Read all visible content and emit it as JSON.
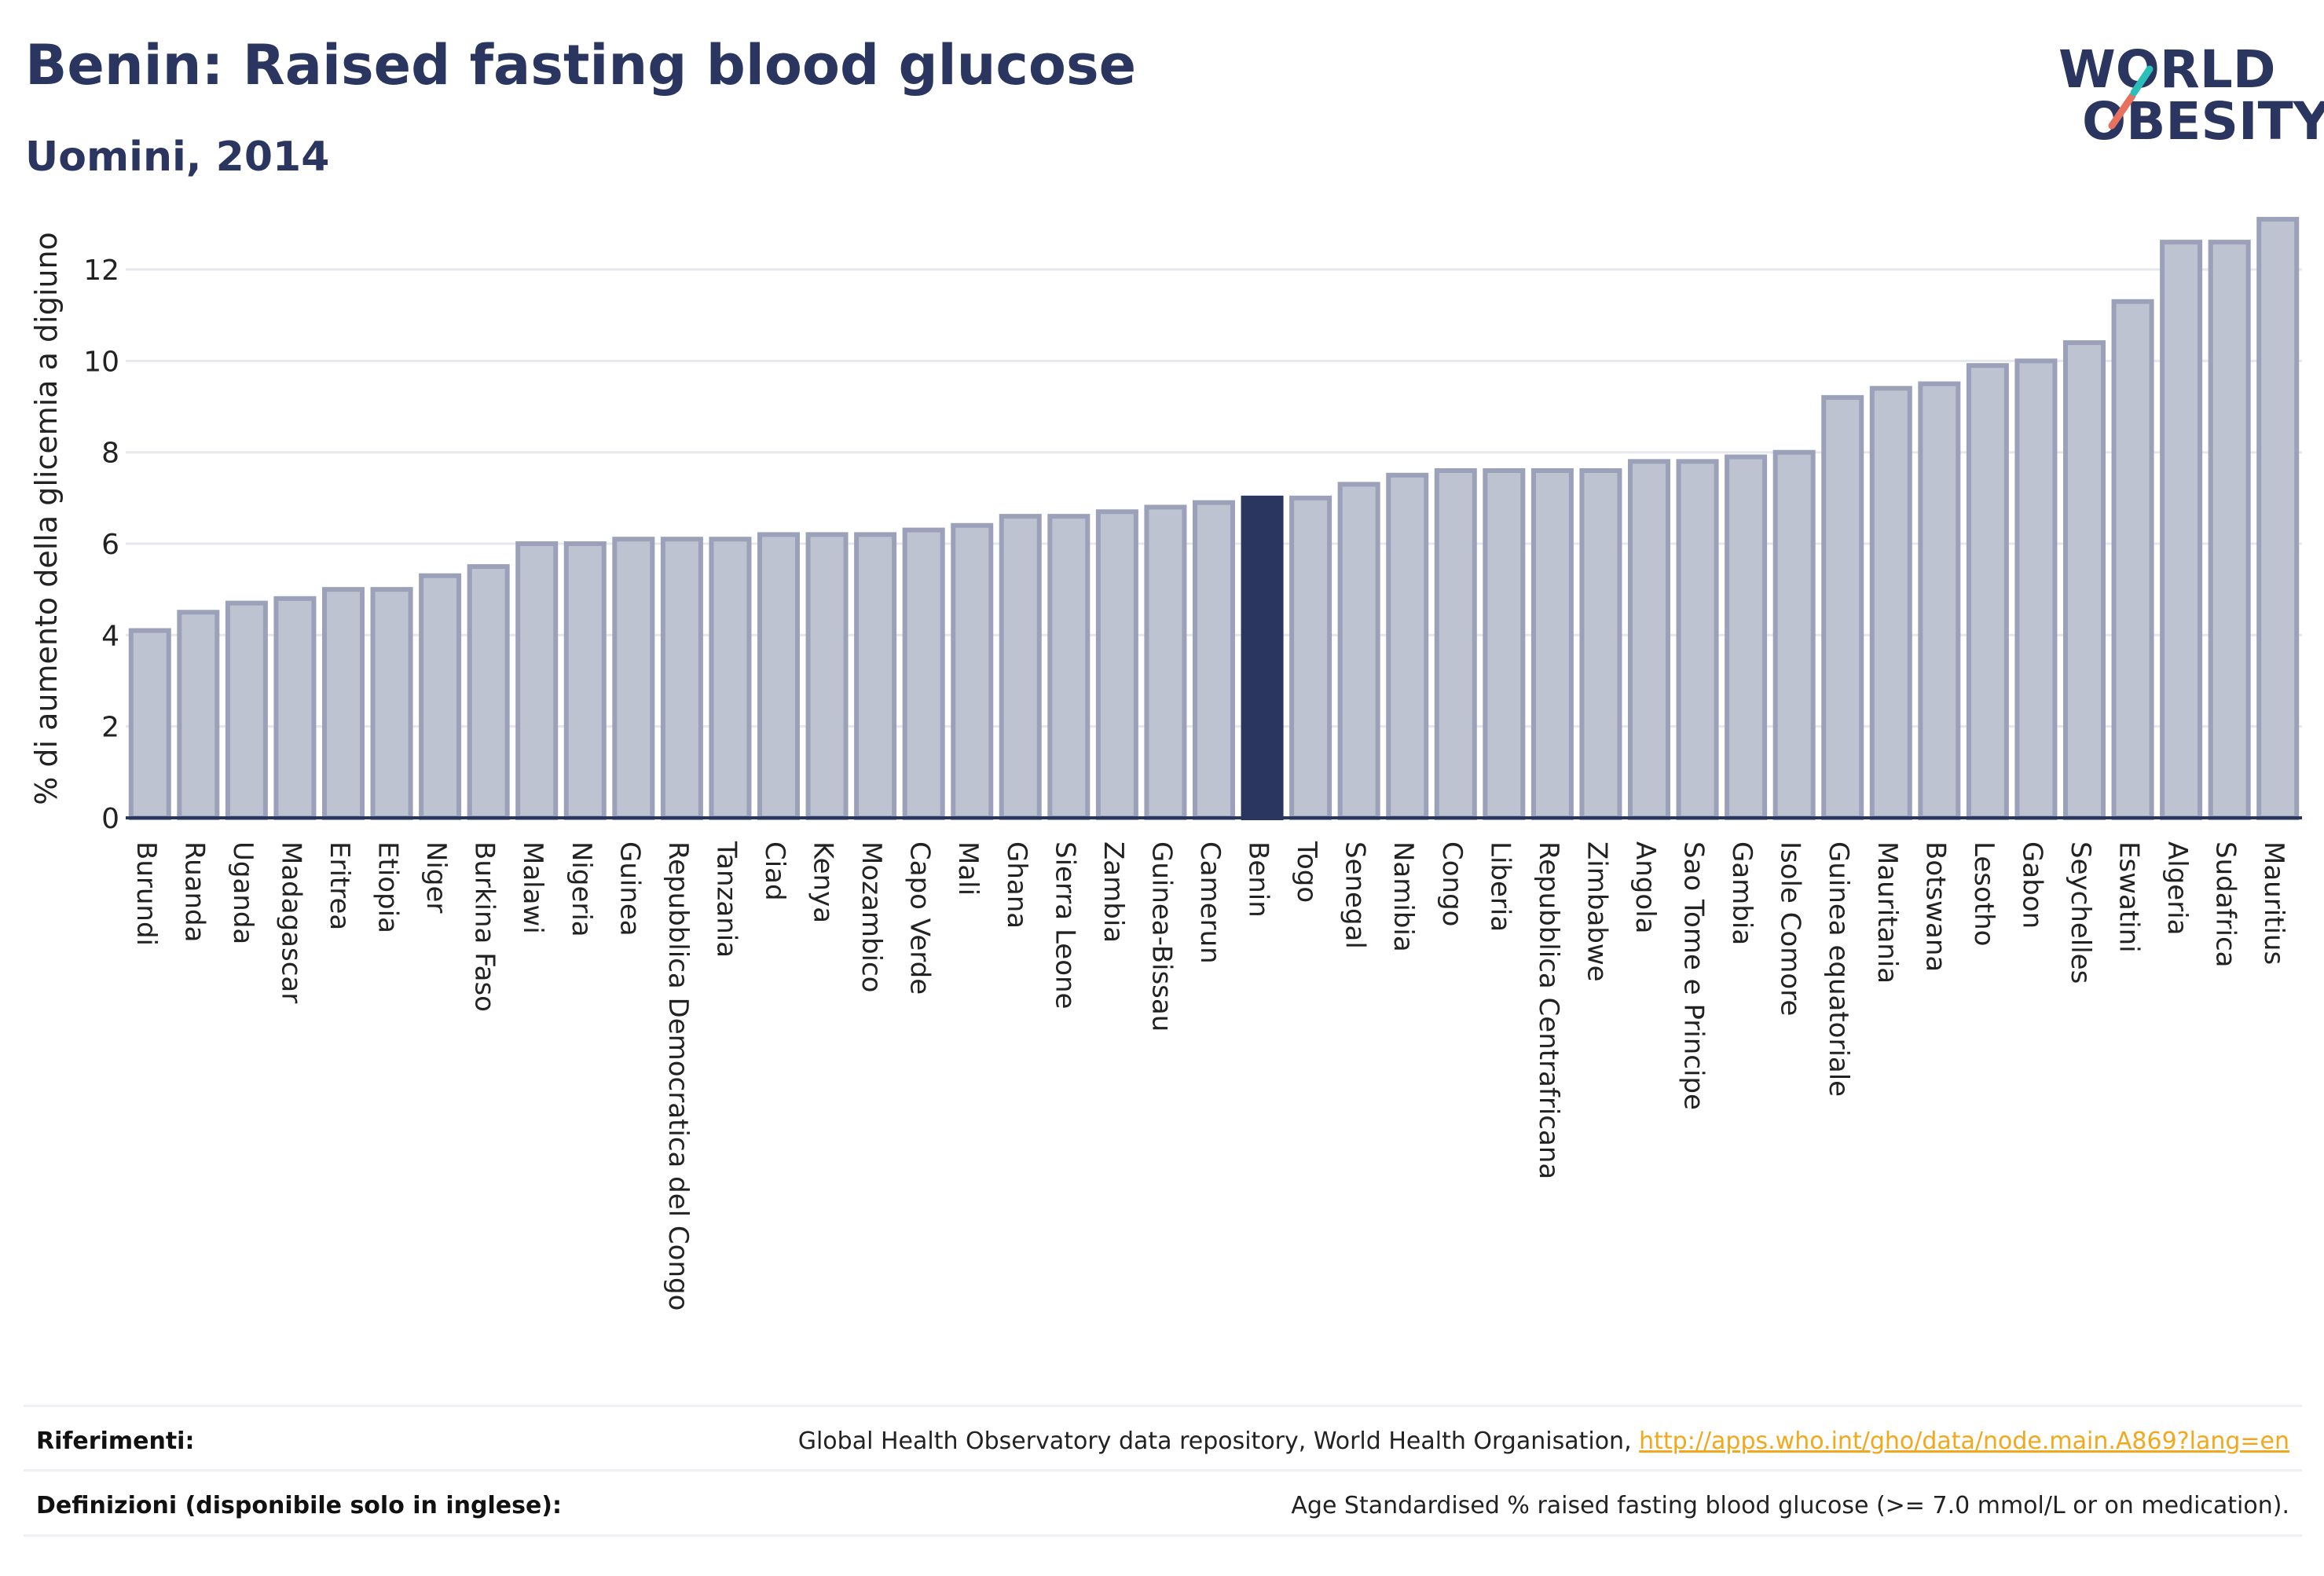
{
  "header": {
    "title": "Benin: Raised fasting blood glucose",
    "subtitle": "Uomini, 2014"
  },
  "logo": {
    "line1": "WORLD",
    "line2": "OBESITY",
    "colors": {
      "text": "#2a3560",
      "slash_teal": "#2bbfb9",
      "slash_coral": "#e8705e"
    }
  },
  "colors": {
    "bar_fill": "#bec3d2",
    "bar_stroke": "#9aa1b8",
    "highlight": "#2a3560",
    "grid": "#e6e8ee",
    "axis": "#2a3560",
    "link": "#f2a81d"
  },
  "chart_data": {
    "type": "bar",
    "title": "Benin: Raised fasting blood glucose",
    "subtitle": "Uomini, 2014",
    "xlabel": "",
    "ylabel": "% di aumento della glicemia a digiuno",
    "ylim": [
      0,
      13.6
    ],
    "yticks": [
      0,
      2,
      4,
      6,
      8,
      10,
      12
    ],
    "grid": true,
    "legend": "none",
    "highlight": "Benin",
    "categories": [
      "Burundi",
      "Ruanda",
      "Uganda",
      "Madagascar",
      "Eritrea",
      "Etiopia",
      "Niger",
      "Burkina Faso",
      "Malawi",
      "Nigeria",
      "Guinea",
      "Repubblica Democratica del Congo",
      "Tanzania",
      "Ciad",
      "Kenya",
      "Mozambico",
      "Capo Verde",
      "Mali",
      "Ghana",
      "Sierra Leone",
      "Zambia",
      "Guinea-Bissau",
      "Camerun",
      "Benin",
      "Togo",
      "Senegal",
      "Namibia",
      "Congo",
      "Liberia",
      "Repubblica Centrafricana",
      "Zimbabwe",
      "Angola",
      "Sao Tome e Principe",
      "Gambia",
      "Isole Comore",
      "Guinea equatoriale",
      "Mauritania",
      "Botswana",
      "Lesotho",
      "Gabon",
      "Seychelles",
      "Eswatini",
      "Algeria",
      "Sudafrica",
      "Mauritius"
    ],
    "values": [
      4.1,
      4.5,
      4.7,
      4.8,
      5.0,
      5.0,
      5.3,
      5.5,
      6.0,
      6.0,
      6.1,
      6.1,
      6.1,
      6.2,
      6.2,
      6.2,
      6.3,
      6.4,
      6.6,
      6.6,
      6.7,
      6.8,
      6.9,
      7.0,
      7.0,
      7.3,
      7.5,
      7.6,
      7.6,
      7.6,
      7.6,
      7.8,
      7.8,
      7.9,
      8.0,
      9.2,
      9.4,
      9.5,
      9.9,
      10.0,
      10.4,
      11.3,
      12.6,
      12.6,
      13.1
    ]
  },
  "references": {
    "sources_label": "Riferimenti:",
    "sources_text": "Global Health Observatory data repository, World Health Organisation, ",
    "sources_link": "http://apps.who.int/gho/data/node.main.A869?lang=en",
    "definitions_label": "Definizioni (disponibile solo in inglese):",
    "definitions_text": "Age Standardised % raised fasting blood glucose (>= 7.0 mmol/L or on medication)."
  }
}
